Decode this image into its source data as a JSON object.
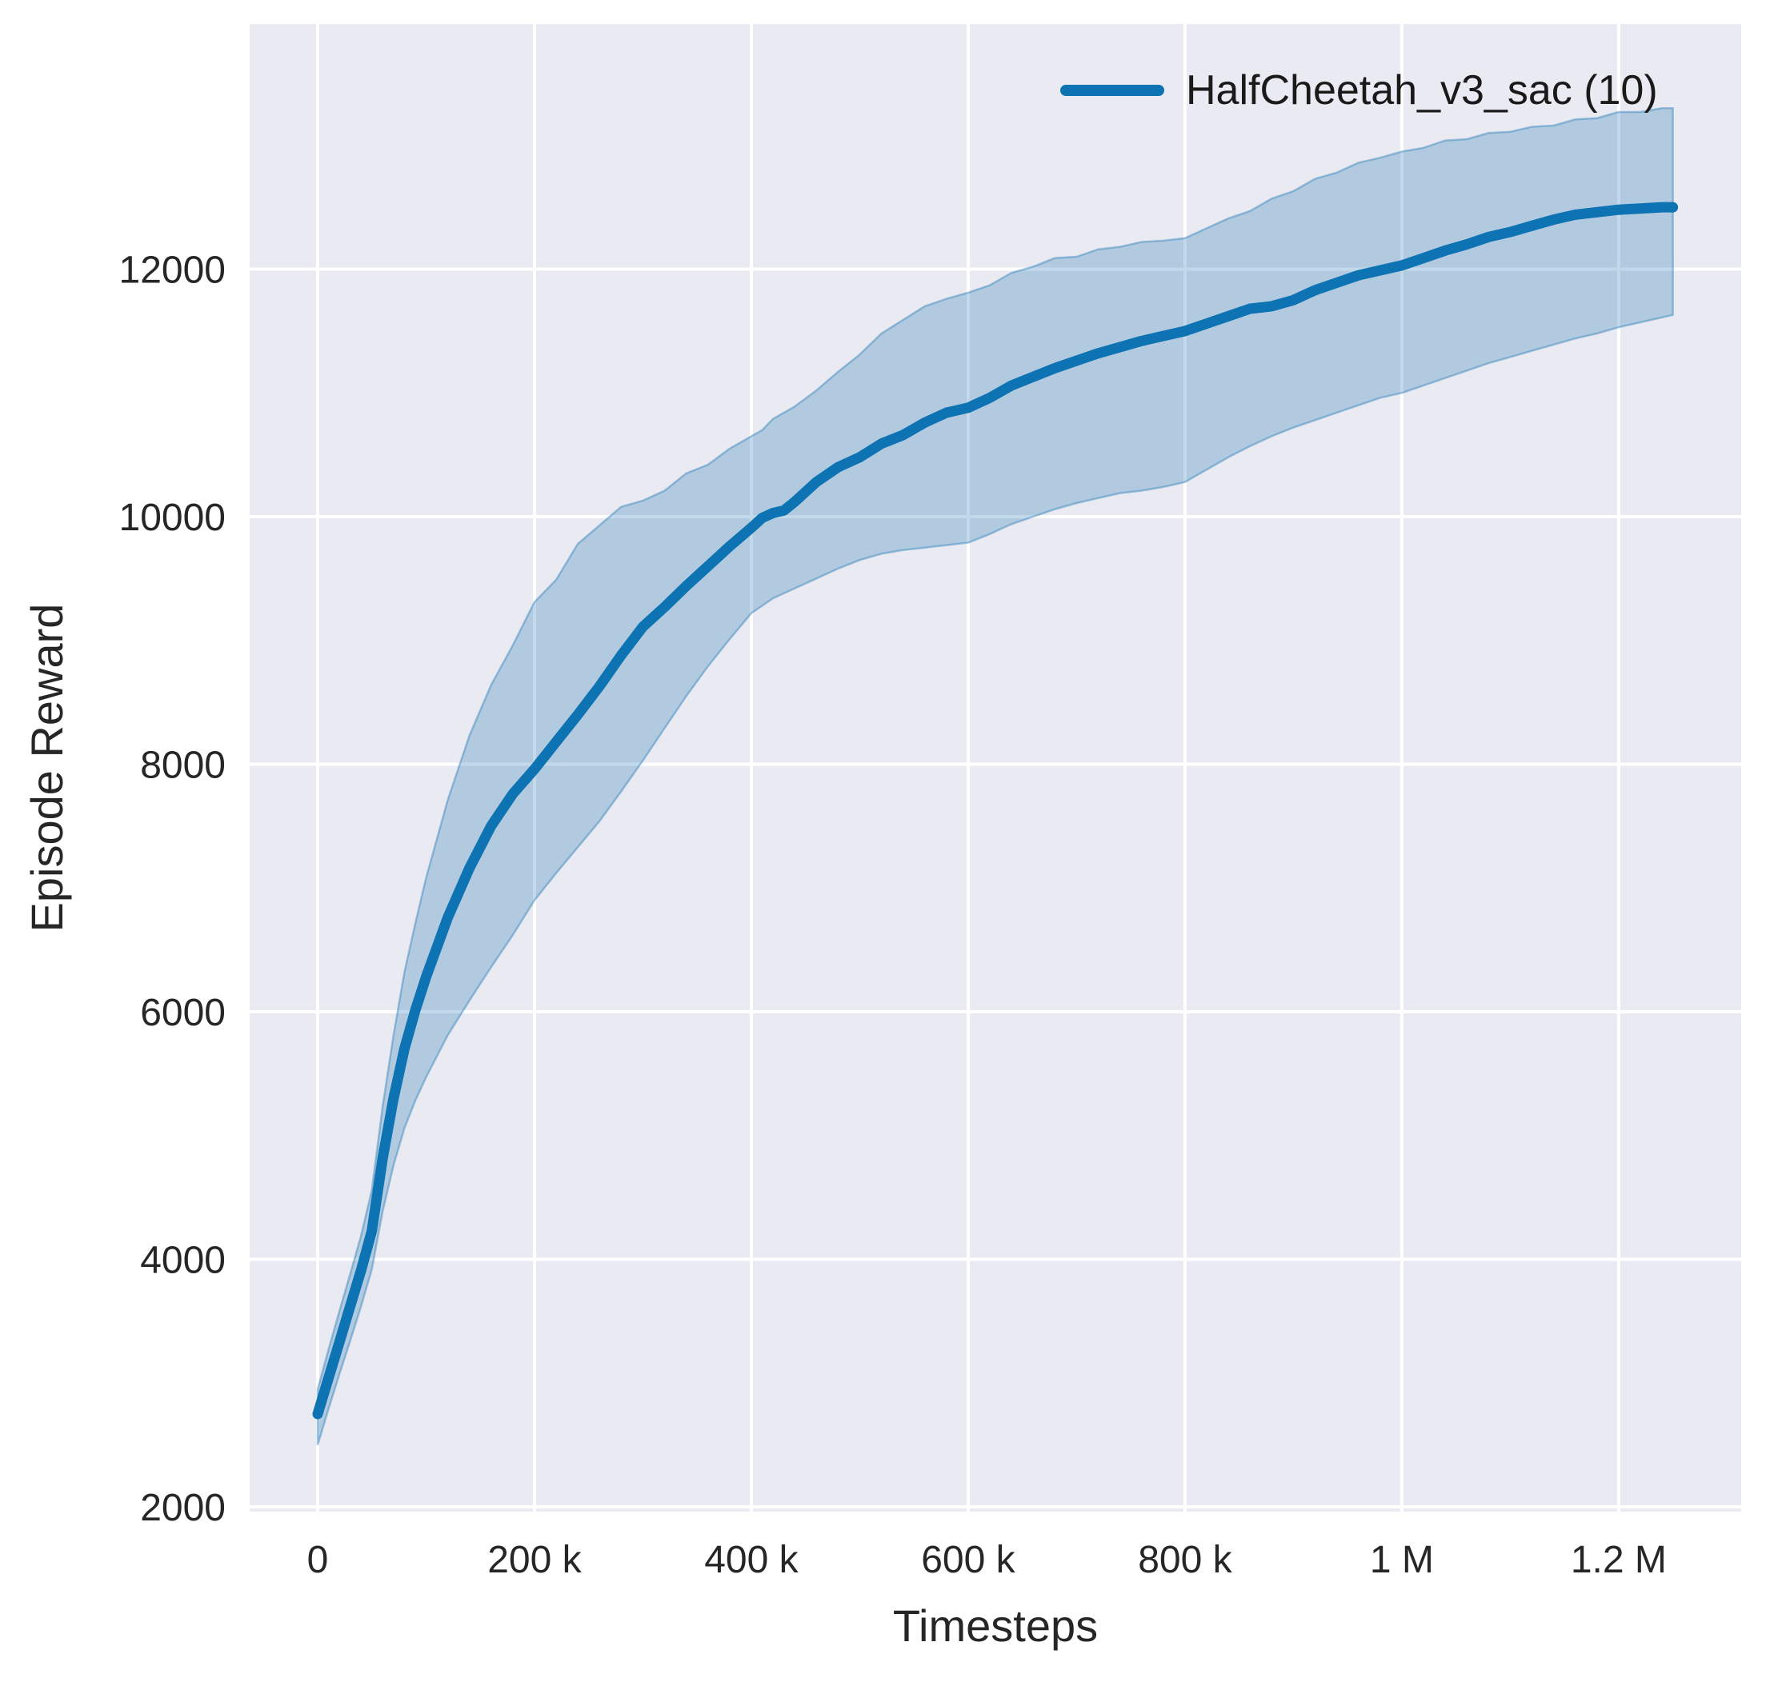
{
  "figure": {
    "background": "#ffffff"
  },
  "chart_data": {
    "type": "line",
    "title": "",
    "xlabel": "Timesteps",
    "ylabel": "Episode Reward",
    "grid": true,
    "plot_background": "#eaeaf2",
    "grid_color": "#ffffff",
    "xlim": [
      -62700,
      1313000
    ],
    "ylim": [
      2000,
      13980
    ],
    "legend": {
      "position": "upper right",
      "entries": [
        {
          "label": "HalfCheetah_v3_sac (10)",
          "color": "#0d73b3"
        }
      ]
    },
    "x_ticks": [
      {
        "value": 0,
        "label": "0"
      },
      {
        "value": 200000,
        "label": "200 k"
      },
      {
        "value": 400000,
        "label": "400 k"
      },
      {
        "value": 600000,
        "label": "600 k"
      },
      {
        "value": 800000,
        "label": "800 k"
      },
      {
        "value": 1000000,
        "label": "1 M"
      },
      {
        "value": 1200000,
        "label": "1.2 M"
      }
    ],
    "y_ticks": [
      {
        "value": 2000,
        "label": "2000"
      },
      {
        "value": 4000,
        "label": "4000"
      },
      {
        "value": 6000,
        "label": "6000"
      },
      {
        "value": 8000,
        "label": "8000"
      },
      {
        "value": 10000,
        "label": "10000"
      },
      {
        "value": 12000,
        "label": "12000"
      }
    ],
    "series": [
      {
        "name": "HalfCheetah_v3_sac (10)",
        "color": "#0d73b3",
        "band_fill": "#1f77b4",
        "band_alpha": 0.28,
        "x": [
          0,
          10000,
          20000,
          30000,
          40000,
          50000,
          60000,
          70000,
          80000,
          90000,
          100000,
          120000,
          140000,
          160000,
          180000,
          200000,
          220000,
          240000,
          260000,
          280000,
          300000,
          320000,
          340000,
          360000,
          380000,
          400000,
          410000,
          420000,
          430000,
          440000,
          460000,
          480000,
          500000,
          520000,
          540000,
          560000,
          580000,
          600000,
          620000,
          640000,
          660000,
          680000,
          700000,
          720000,
          740000,
          760000,
          780000,
          800000,
          820000,
          840000,
          860000,
          880000,
          900000,
          920000,
          940000,
          960000,
          980000,
          1000000,
          1020000,
          1040000,
          1060000,
          1080000,
          1100000,
          1120000,
          1140000,
          1160000,
          1180000,
          1200000,
          1220000,
          1240000,
          1250000
        ],
        "mean": [
          2750,
          3040,
          3330,
          3620,
          3910,
          4230,
          4820,
          5300,
          5700,
          6010,
          6280,
          6760,
          7160,
          7500,
          7760,
          7960,
          8180,
          8400,
          8630,
          8880,
          9110,
          9270,
          9440,
          9600,
          9760,
          9910,
          9990,
          10030,
          10050,
          10120,
          10280,
          10400,
          10480,
          10590,
          10660,
          10760,
          10840,
          10880,
          10960,
          11060,
          11130,
          11200,
          11260,
          11320,
          11370,
          11420,
          11460,
          11500,
          11560,
          11620,
          11680,
          11700,
          11750,
          11830,
          11890,
          11950,
          11990,
          12030,
          12090,
          12150,
          12200,
          12260,
          12300,
          12350,
          12400,
          12440,
          12460,
          12480,
          12490,
          12500,
          12500
        ],
        "lower": [
          2500,
          2790,
          3070,
          3340,
          3620,
          3920,
          4390,
          4760,
          5060,
          5280,
          5470,
          5810,
          6090,
          6360,
          6620,
          6900,
          7120,
          7330,
          7540,
          7780,
          8030,
          8290,
          8550,
          8790,
          9010,
          9220,
          9280,
          9340,
          9380,
          9420,
          9500,
          9580,
          9650,
          9700,
          9730,
          9750,
          9770,
          9790,
          9860,
          9940,
          10000,
          10060,
          10110,
          10150,
          10190,
          10210,
          10240,
          10280,
          10380,
          10480,
          10570,
          10650,
          10720,
          10780,
          10840,
          10900,
          10960,
          11000,
          11060,
          11120,
          11180,
          11240,
          11290,
          11340,
          11390,
          11440,
          11480,
          11530,
          11570,
          11610,
          11630
        ],
        "upper": [
          2950,
          3270,
          3580,
          3880,
          4190,
          4560,
          5240,
          5810,
          6320,
          6710,
          7080,
          7710,
          8230,
          8640,
          8960,
          9310,
          9490,
          9780,
          9930,
          10080,
          10130,
          10210,
          10350,
          10420,
          10550,
          10650,
          10700,
          10790,
          10840,
          10890,
          11020,
          11170,
          11310,
          11480,
          11590,
          11700,
          11760,
          11810,
          11870,
          11970,
          12020,
          12090,
          12100,
          12160,
          12180,
          12220,
          12230,
          12250,
          12330,
          12410,
          12470,
          12570,
          12630,
          12730,
          12780,
          12860,
          12900,
          12950,
          12980,
          13040,
          13050,
          13100,
          13110,
          13150,
          13160,
          13210,
          13220,
          13270,
          13270,
          13300,
          13300
        ]
      }
    ]
  }
}
